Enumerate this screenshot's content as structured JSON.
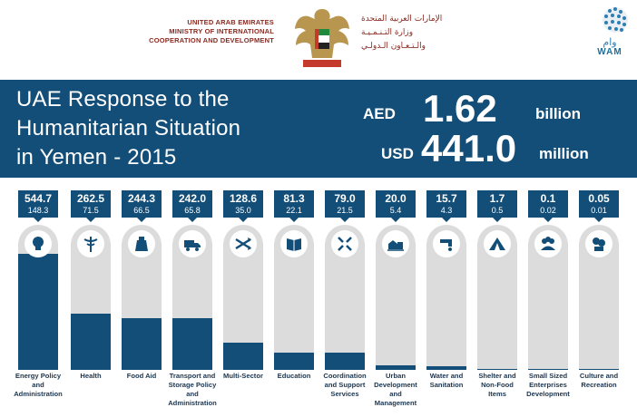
{
  "header": {
    "ministry_en_line1": "UNITED ARAB EMIRATES",
    "ministry_en_line2": "MINISTRY OF INTERNATIONAL",
    "ministry_en_line3": "COOPERATION AND DEVELOPMENT",
    "ministry_ar_line1": "الإمارات العربية المتحدة",
    "ministry_ar_line2": "وزارة التـنـمـيـة",
    "ministry_ar_line3": "والـتـعـاون الـدولـي",
    "emblem": "uae-emblem-icon",
    "wam_logo": "WAM",
    "wam_ar": "وام"
  },
  "banner": {
    "title_line1": "UAE Response to the",
    "title_line2": "Humanitarian Situation",
    "title_line3": "in Yemen - 2015",
    "aed_currency": "AED",
    "aed_amount": "1.62",
    "aed_unit": "billion",
    "usd_currency": "USD",
    "usd_amount": "441.0",
    "usd_unit": "million"
  },
  "colors": {
    "primary": "#134e78",
    "track": "#dcdcdc",
    "label": "#1b3550",
    "ministry": "#8a2a20"
  },
  "chart_data": {
    "type": "bar",
    "categories": [
      "Energy Policy and Administration",
      "Health",
      "Food Aid",
      "Transport and Storage Policy and Administration",
      "Multi-Sector",
      "Education",
      "Coordination and Support Services",
      "Urban Development and Management",
      "Water and Sanitation",
      "Shelter and Non-Food Items",
      "Small Sized Enterprises Development",
      "Culture and Recreation"
    ],
    "label_lines": [
      [
        "Energy Policy",
        "and",
        "Administration"
      ],
      [
        "Health"
      ],
      [
        "Food Aid"
      ],
      [
        "Transport and",
        "Storage Policy",
        "and",
        "Administration"
      ],
      [
        "Multi-Sector"
      ],
      [
        "Education"
      ],
      [
        "Coordination",
        "and Support",
        "Services"
      ],
      [
        "Urban",
        "Development",
        "and",
        "Management"
      ],
      [
        "Water and",
        "Sanitation"
      ],
      [
        "Shelter and",
        "Non-Food",
        "Items"
      ],
      [
        "Small Sized",
        "Enterprises",
        "Development"
      ],
      [
        "Culture and",
        "Recreation"
      ]
    ],
    "value_labels_aed": [
      "544.7",
      "262.5",
      "244.3",
      "242.0",
      "128.6",
      "81.3",
      "79.0",
      "20.0",
      "15.7",
      "1.7",
      "0.1",
      "0.05"
    ],
    "value_labels_usd": [
      "148.3",
      "71.5",
      "66.5",
      "65.8",
      "35.0",
      "22.1",
      "21.5",
      "5.4",
      "4.3",
      "0.5",
      "0.02",
      "0.01"
    ],
    "series": [
      {
        "values": [
          544.7,
          262.5,
          244.3,
          242.0,
          128.6,
          81.3,
          79.0,
          20.0,
          15.7,
          1.7,
          0.1,
          0.05
        ]
      },
      {
        "values": [
          148.3,
          71.5,
          66.5,
          65.8,
          35.0,
          22.1,
          21.5,
          5.4,
          4.3,
          0.5,
          0.02,
          0.01
        ]
      }
    ],
    "ylim": [
      0,
      680
    ],
    "icons": [
      "lightbulb-icon",
      "caduceus-icon",
      "food-bag-icon",
      "truck-icon",
      "arrows-icon",
      "book-icon",
      "coordination-arrows-icon",
      "buildings-icon",
      "water-tap-icon",
      "tent-icon",
      "people-group-icon",
      "culture-icon"
    ]
  }
}
